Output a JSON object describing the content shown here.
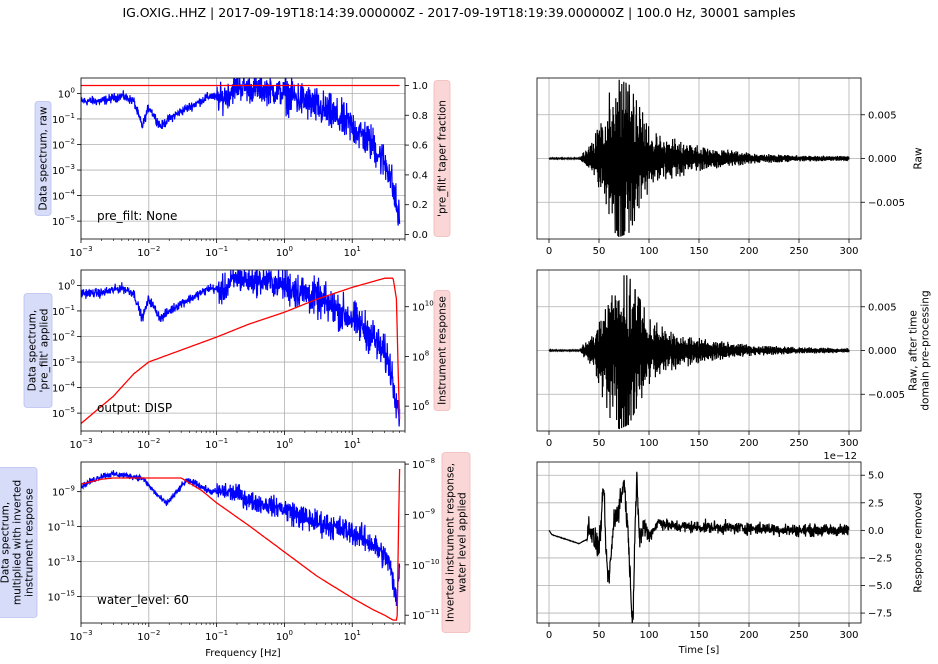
{
  "title": "IG.OXIG..HHZ | 2017-09-19T18:14:39.000000Z - 2017-09-19T18:19:39.000000Z | 100.0 Hz, 30001 samples",
  "colors": {
    "spectrum": "#0000ff",
    "response": "#ff0000",
    "trace": "#000000",
    "blue_label_bg": "#d7dcf9",
    "red_label_bg": "#fbd6d6",
    "grid": "#b0b0b0"
  },
  "chart_data": [
    {
      "type": "line",
      "panel": "spectrum_raw",
      "ylabel": "Data spectrum, raw",
      "right_ylabel": "'pre_filt' taper fraction",
      "annotation": "pre_filt: None",
      "xscale": "log",
      "yscale": "log",
      "xlim": [
        0.001,
        60
      ],
      "ylim": [
        2e-06,
        4
      ],
      "right_ylim": [
        -0.03,
        1.05
      ],
      "xticks": [
        "10^-3",
        "10^-2",
        "10^-1",
        "10^0",
        "10^1"
      ],
      "yticks": [
        "10^0",
        "10^-1",
        "10^-2",
        "10^-3",
        "10^-4",
        "10^-5"
      ],
      "right_yticks": [
        "0.0",
        "0.2",
        "0.4",
        "0.6",
        "0.8",
        "1.0"
      ],
      "series": [
        {
          "role": "spectrum",
          "x": [
            0.001,
            0.002,
            0.004,
            0.006,
            0.008,
            0.01,
            0.015,
            0.02,
            0.03,
            0.05,
            0.08,
            0.12,
            0.2,
            0.3,
            0.5,
            1,
            2,
            5,
            10,
            20,
            35,
            50
          ],
          "y": [
            0.5,
            0.5,
            0.8,
            0.5,
            0.05,
            0.3,
            0.05,
            0.1,
            0.2,
            0.4,
            0.8,
            0.6,
            2.0,
            1.5,
            1.5,
            1.0,
            0.5,
            0.15,
            0.05,
            0.01,
            0.001,
            1e-05
          ]
        },
        {
          "role": "taper",
          "x": [
            0.001,
            50
          ],
          "y": [
            1.0,
            1.0
          ]
        }
      ]
    },
    {
      "type": "line",
      "panel": "spectrum_prefilt",
      "ylabel": "Data spectrum, 'pre_filt' applied",
      "right_ylabel": "Instrument response",
      "annotation": "output: DISP",
      "xscale": "log",
      "yscale": "log",
      "xlim": [
        0.001,
        60
      ],
      "ylim": [
        2e-06,
        4
      ],
      "right_ylim": [
        100000.0,
        300000000000.0
      ],
      "xticks": [
        "10^-3",
        "10^-2",
        "10^-1",
        "10^0",
        "10^1"
      ],
      "yticks": [
        "10^0",
        "10^-1",
        "10^-2",
        "10^-3",
        "10^-4",
        "10^-5"
      ],
      "right_yticks": [
        "10^6",
        "10^8",
        "10^10"
      ],
      "series": [
        {
          "role": "spectrum",
          "x": [
            0.001,
            0.002,
            0.004,
            0.006,
            0.008,
            0.01,
            0.015,
            0.02,
            0.03,
            0.05,
            0.08,
            0.12,
            0.2,
            0.3,
            0.5,
            1,
            2,
            5,
            10,
            20,
            35,
            50
          ],
          "y": [
            0.5,
            0.5,
            0.8,
            0.5,
            0.05,
            0.3,
            0.05,
            0.1,
            0.2,
            0.4,
            0.8,
            0.6,
            2.0,
            1.5,
            1.5,
            1.0,
            0.5,
            0.15,
            0.05,
            0.01,
            0.001,
            1e-05
          ]
        },
        {
          "role": "response",
          "x": [
            0.001,
            0.003,
            0.006,
            0.01,
            0.02,
            0.05,
            0.1,
            0.3,
            1,
            3,
            10,
            30,
            40,
            45,
            48,
            50
          ],
          "y": [
            200000,
            2500000,
            20000000,
            60000000,
            120000000,
            300000000,
            600000000,
            2000000000,
            6000000000,
            20000000000,
            60000000000,
            140000000000,
            140000000000,
            20000000000,
            10000000,
            300000
          ]
        }
      ]
    },
    {
      "type": "line",
      "panel": "spectrum_corrected",
      "ylabel": "Data spectrum, multiplied with inverted instrument response",
      "right_ylabel": "Inverted instrument response, water level applied",
      "annotation": "water_level: 60",
      "xlabel": "Frequency [Hz]",
      "xscale": "log",
      "yscale": "log",
      "xlim": [
        0.001,
        60
      ],
      "ylim": [
        3e-17,
        5e-08
      ],
      "right_ylim": [
        7e-12,
        1.1e-08
      ],
      "xticks": [
        "10^-3",
        "10^-2",
        "10^-1",
        "10^0",
        "10^1"
      ],
      "yticks": [
        "10^-9",
        "10^-11",
        "10^-13",
        "10^-15"
      ],
      "right_yticks": [
        "10^-8",
        "10^-9",
        "10^-10",
        "10^-11"
      ],
      "series": [
        {
          "role": "spectrum",
          "x": [
            0.001,
            0.002,
            0.003,
            0.005,
            0.008,
            0.012,
            0.018,
            0.025,
            0.035,
            0.05,
            0.08,
            0.12,
            0.2,
            0.3,
            0.5,
            1,
            2,
            5,
            10,
            20,
            35,
            45,
            50
          ],
          "y": [
            2e-09,
            8e-09,
            1e-08,
            8e-09,
            6e-09,
            1e-09,
            2e-10,
            8e-10,
            4e-09,
            3e-09,
            1e-09,
            1e-09,
            8e-10,
            3e-10,
            2e-10,
            1e-10,
            3e-11,
            1e-11,
            5e-12,
            1e-12,
            1e-13,
            5e-16,
            1e-13
          ]
        },
        {
          "role": "inverse_response",
          "x": [
            0.001,
            0.002,
            0.003,
            0.03,
            0.06,
            0.1,
            0.3,
            1,
            3,
            10,
            20,
            30,
            40,
            46,
            48,
            50
          ],
          "y": [
            4e-09,
            5e-09,
            5.3e-09,
            5.3e-09,
            3e-09,
            1.7e-09,
            6e-10,
            1.8e-10,
            6e-11,
            2.2e-11,
            1.3e-11,
            1e-11,
            8e-12,
            8e-12,
            4e-10,
            8e-09
          ]
        }
      ]
    },
    {
      "type": "line",
      "panel": "trace_raw",
      "right_ylabel": "Raw",
      "xlim": [
        -12,
        312
      ],
      "ylim": [
        -0.0092,
        0.0092
      ],
      "xticks": [
        "0",
        "50",
        "100",
        "150",
        "200",
        "250",
        "300"
      ],
      "yticks": [
        "0.005",
        "0.000",
        "-0.005"
      ],
      "envelope": {
        "t": [
          0,
          30,
          37,
          45,
          55,
          62,
          70,
          80,
          90,
          100,
          120,
          150,
          200,
          250,
          300
        ],
        "amplitude": [
          5e-05,
          5e-05,
          0.0012,
          0.0025,
          0.006,
          0.008,
          0.009,
          0.0085,
          0.006,
          0.004,
          0.0025,
          0.0015,
          0.0007,
          0.0004,
          0.0003
        ]
      }
    },
    {
      "type": "line",
      "panel": "trace_preprocessed",
      "right_ylabel": "Raw, after time domain pre-processing",
      "xlim": [
        -12,
        312
      ],
      "ylim": [
        -0.0092,
        0.0092
      ],
      "xticks": [
        "0",
        "50",
        "100",
        "150",
        "200",
        "250",
        "300"
      ],
      "yticks": [
        "0.005",
        "0.000",
        "-0.005"
      ],
      "envelope": {
        "t": [
          0,
          30,
          37,
          45,
          55,
          62,
          70,
          80,
          90,
          100,
          120,
          150,
          200,
          250,
          300
        ],
        "amplitude": [
          5e-05,
          5e-05,
          0.0012,
          0.0025,
          0.006,
          0.008,
          0.009,
          0.0085,
          0.006,
          0.004,
          0.0025,
          0.0015,
          0.0007,
          0.0004,
          0.0003
        ]
      }
    },
    {
      "type": "line",
      "panel": "trace_corrected",
      "right_ylabel": "Response removed",
      "xlabel": "Time [s]",
      "offset_text": "1e−12",
      "xlim": [
        -12,
        312
      ],
      "ylim": [
        -8.4,
        6.2
      ],
      "xticks": [
        "0",
        "50",
        "100",
        "150",
        "200",
        "250",
        "300"
      ],
      "yticks": [
        "5.0",
        "2.5",
        "0.0",
        "-2.5",
        "-5.0",
        "-7.5"
      ],
      "keypoints": {
        "t": [
          0,
          3,
          10,
          20,
          30,
          38,
          40,
          45,
          50,
          55,
          57,
          60,
          65,
          70,
          75,
          80,
          82,
          84,
          86,
          88,
          90,
          95,
          100,
          110,
          120,
          150,
          200,
          250,
          300
        ],
        "y": [
          0.0,
          -0.4,
          -0.6,
          -0.9,
          -1.2,
          -0.8,
          0.6,
          -1.0,
          -1.5,
          4.0,
          -2.5,
          -4.5,
          1.0,
          2.0,
          4.5,
          -1.5,
          -6.5,
          -7.8,
          0.5,
          5.0,
          -1.0,
          0.5,
          -0.5,
          0.8,
          0.4,
          0.3,
          0.2,
          0.0,
          0.0
        ]
      }
    }
  ]
}
